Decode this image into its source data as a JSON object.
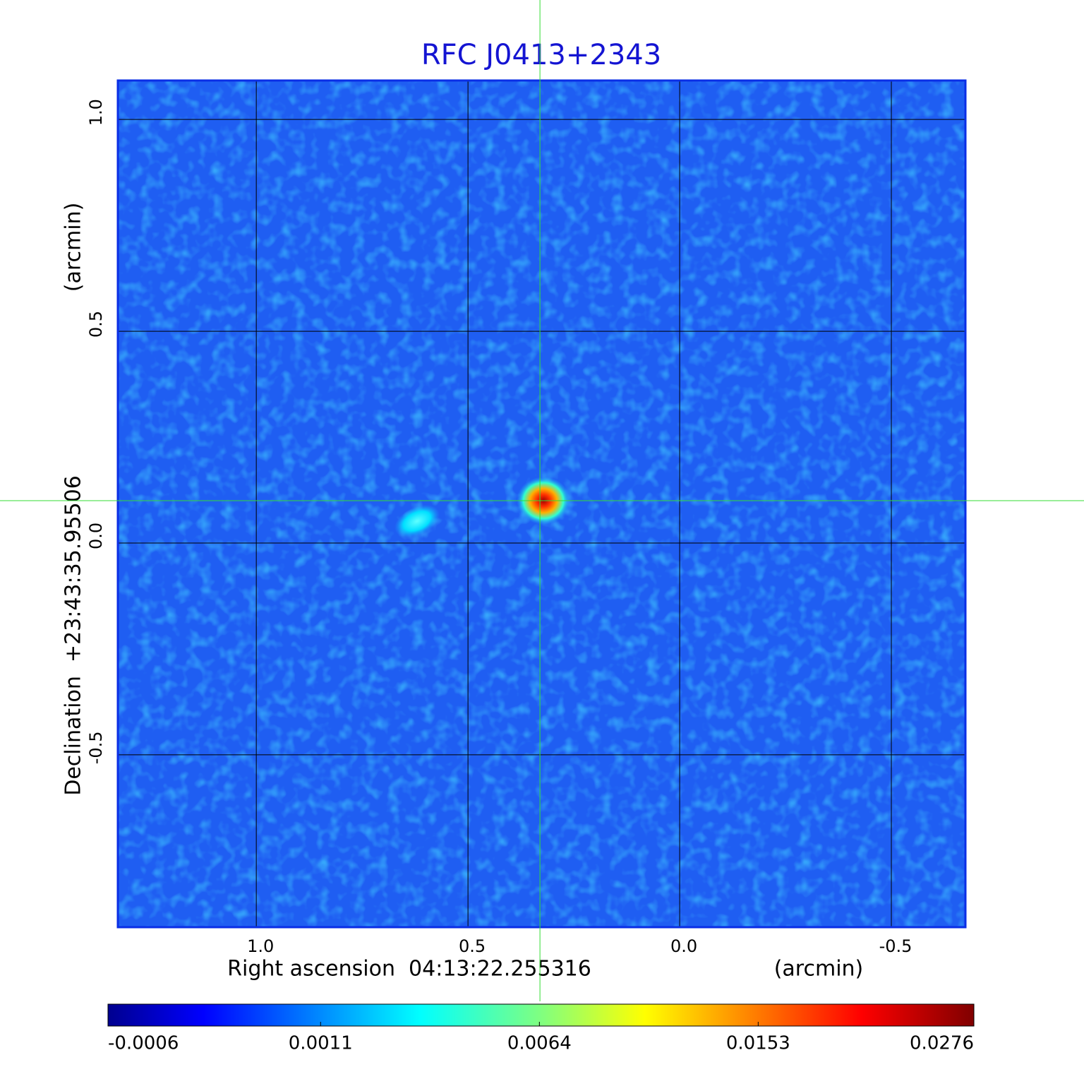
{
  "chart_data": {
    "type": "image",
    "title": "RFC J0413+2343",
    "xlabel": "Right ascension  04:13:22.255316",
    "xunit": "(arcmin)",
    "ylabel": "Declination  +23:43:35.95506",
    "yunit": "(arcmin)",
    "xlim": [
      1.327,
      -0.675
    ],
    "ylim": [
      -0.907,
      1.092
    ],
    "xticks": [
      {
        "value": 1,
        "label": "1.0"
      },
      0.5,
      {
        "value": 0,
        "label": "0.0"
      },
      -0.5
    ],
    "yticks": [
      {
        "value": 1,
        "label": "1.0"
      },
      0.5,
      {
        "value": 0,
        "label": "0.0"
      },
      -0.5
    ],
    "grid": true,
    "crosshair": {
      "x": 0.33,
      "y": 0.1
    },
    "colorbar": {
      "lim": [
        -0.0006,
        0.0276
      ],
      "scale": "sqrt",
      "ticks": [
        -0.0006,
        0.0011,
        0.0064,
        0.0153,
        0.0276
      ]
    }
  }
}
